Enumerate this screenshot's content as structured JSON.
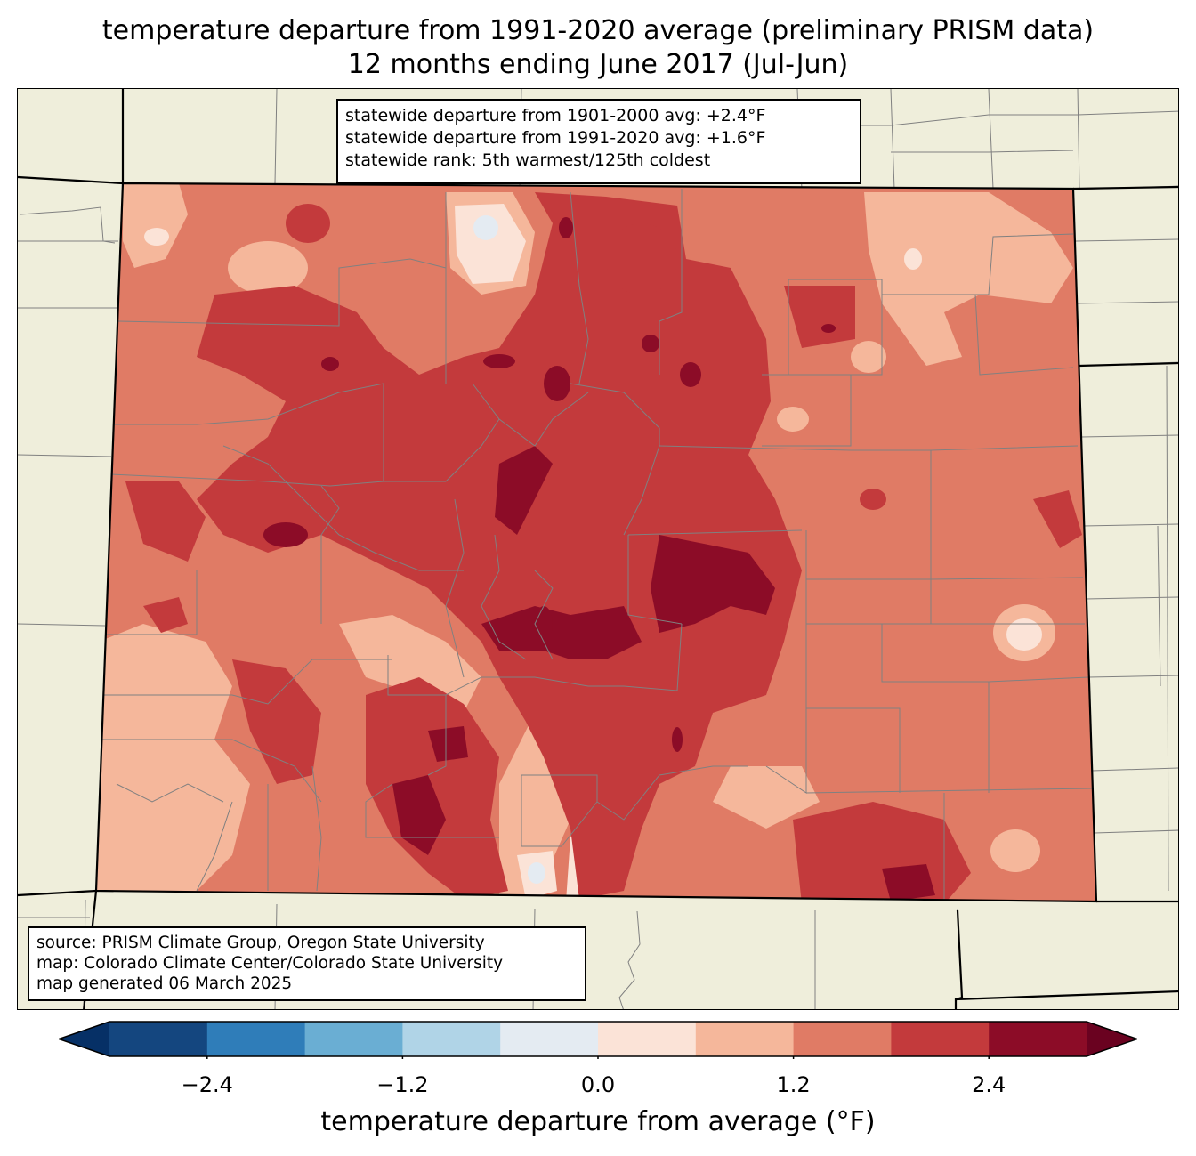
{
  "title": {
    "line1": "temperature departure from 1991-2020 average (preliminary PRISM data)",
    "line2": "12 months ending June 2017 (Jul-Jun)"
  },
  "stats": {
    "line1": "statewide departure from 1901-2000 avg: +2.4°F",
    "line2": "statewide departure from 1991-2020 avg: +1.6°F",
    "line3": "statewide rank: 5th warmest/125th coldest"
  },
  "credits": {
    "line1": "source: PRISM Climate Group, Oregon State University",
    "line2": "map: Colorado Climate Center/Colorado State University",
    "line3": "map generated 06 March 2025"
  },
  "colorbar": {
    "label": "temperature departure from average (°F)",
    "boundaries": [
      -3.0,
      -2.4,
      -1.8,
      -1.2,
      -0.6,
      0.0,
      0.6,
      1.2,
      1.8,
      2.4,
      3.0
    ],
    "colors": [
      "#14467f",
      "#2f7db9",
      "#6aaed3",
      "#b0d4e7",
      "#e4ebf2",
      "#fbe3d7",
      "#f5b79b",
      "#e07b65",
      "#c33a3c",
      "#8c0c27"
    ],
    "under_color": "#063066",
    "over_color": "#6a0220",
    "ticks": [
      {
        "value": -2.4,
        "label": "−2.4"
      },
      {
        "value": -1.2,
        "label": "−1.2"
      },
      {
        "value": 0.0,
        "label": "0.0"
      },
      {
        "value": 1.2,
        "label": "1.2"
      },
      {
        "value": 2.4,
        "label": "2.4"
      }
    ]
  },
  "map_colors": {
    "land": "#efeedb",
    "state_border": "#000000",
    "county_line": "#808080"
  }
}
